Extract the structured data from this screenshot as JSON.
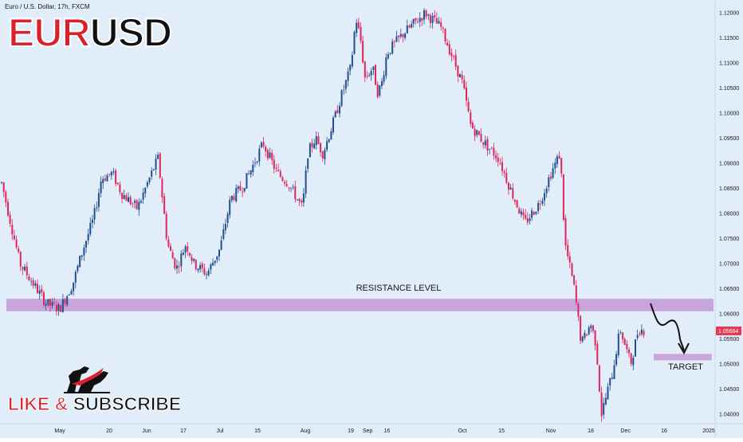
{
  "header": {
    "source_line": "Euro / U.S. Dollar, 17h, FXCM",
    "symbol_part_a": "EUR",
    "symbol_part_b": "USD"
  },
  "promo": {
    "like_part_a": "LIKE & ",
    "like_part_b": "SUBSCRIBE",
    "logo_icon": "bull-bear-icon"
  },
  "annotations": {
    "resistance_label": "RESISTANCE LEVEL",
    "target_label": "TARGET",
    "projection_icon": "down-arrow-path-icon"
  },
  "colors": {
    "background": "#e1edf9",
    "up_candle": "#1f4f8f",
    "down_candle": "#e0245e",
    "zone_fill": "#c8a6dd",
    "price_badge": "#e53950"
  },
  "chart_data": {
    "type": "candlestick",
    "title": "EURUSD",
    "subtitle": "Euro / U.S. Dollar, 17h, FXCM",
    "ylim": [
      1.0375,
      1.1215
    ],
    "y_ticks": [
      "1.12000",
      "1.11500",
      "1.11000",
      "1.10500",
      "1.10000",
      "1.09500",
      "1.09000",
      "1.08500",
      "1.08000",
      "1.07500",
      "1.07000",
      "1.06500",
      "1.06000",
      "1.05500",
      "1.05000",
      "1.04500",
      "1.04000"
    ],
    "x_ticks": [
      "May",
      "20",
      "Jun",
      "17",
      "Jul",
      "15",
      "Aug",
      "19",
      "Sep",
      "16",
      "Oct",
      "15",
      "Nov",
      "18",
      "Dec",
      "16",
      "2025"
    ],
    "last_price": "1.05664",
    "grid": false,
    "price_path": [
      {
        "date": "Apr 22",
        "price": 1.0875
      },
      {
        "date": "Apr 25",
        "price": 1.07
      },
      {
        "date": "Apr 29",
        "price": 1.062
      },
      {
        "date": "May 1",
        "price": 1.061
      },
      {
        "date": "May 6",
        "price": 1.066
      },
      {
        "date": "May 10",
        "price": 1.073
      },
      {
        "date": "May 14",
        "price": 1.079
      },
      {
        "date": "May 17",
        "price": 1.087
      },
      {
        "date": "May 21",
        "price": 1.088
      },
      {
        "date": "May 24",
        "price": 1.084
      },
      {
        "date": "May 29",
        "price": 1.081
      },
      {
        "date": "Jun 4",
        "price": 1.089
      },
      {
        "date": "Jun 6",
        "price": 1.091
      },
      {
        "date": "Jun 10",
        "price": 1.074
      },
      {
        "date": "Jun 14",
        "price": 1.069
      },
      {
        "date": "Jun 18",
        "price": 1.074
      },
      {
        "date": "Jun 21",
        "price": 1.07
      },
      {
        "date": "Jun 26",
        "price": 1.068
      },
      {
        "date": "Jul 1",
        "price": 1.073
      },
      {
        "date": "Jul 5",
        "price": 1.083
      },
      {
        "date": "Jul 9",
        "price": 1.085
      },
      {
        "date": "Jul 12",
        "price": 1.088
      },
      {
        "date": "Jul 17",
        "price": 1.094
      },
      {
        "date": "Jul 22",
        "price": 1.088
      },
      {
        "date": "Jul 26",
        "price": 1.086
      },
      {
        "date": "Jul 31",
        "price": 1.081
      },
      {
        "date": "Aug 2",
        "price": 1.092
      },
      {
        "date": "Aug 5",
        "price": 1.095
      },
      {
        "date": "Aug 8",
        "price": 1.092
      },
      {
        "date": "Aug 12",
        "price": 1.098
      },
      {
        "date": "Aug 15",
        "price": 1.103
      },
      {
        "date": "Aug 19",
        "price": 1.109
      },
      {
        "date": "Aug 23",
        "price": 1.119
      },
      {
        "date": "Aug 27",
        "price": 1.114
      },
      {
        "date": "Aug 30",
        "price": 1.107
      },
      {
        "date": "Sep 5",
        "price": 1.109
      },
      {
        "date": "Sep 9",
        "price": 1.104
      },
      {
        "date": "Sep 12",
        "price": 1.106
      },
      {
        "date": "Sep 16",
        "price": 1.112
      },
      {
        "date": "Sep 20",
        "price": 1.116
      },
      {
        "date": "Sep 24",
        "price": 1.12
      },
      {
        "date": "Sep 27",
        "price": 1.117
      },
      {
        "date": "Oct 1",
        "price": 1.106
      },
      {
        "date": "Oct 4",
        "price": 1.0975
      },
      {
        "date": "Oct 9",
        "price": 1.094
      },
      {
        "date": "Oct 14",
        "price": 1.091
      },
      {
        "date": "Oct 18",
        "price": 1.085
      },
      {
        "date": "Oct 23",
        "price": 1.078
      },
      {
        "date": "Oct 28",
        "price": 1.082
      },
      {
        "date": "Nov 1",
        "price": 1.088
      },
      {
        "date": "Nov 5",
        "price": 1.092
      },
      {
        "date": "Nov 7",
        "price": 1.074
      },
      {
        "date": "Nov 11",
        "price": 1.065
      },
      {
        "date": "Nov 14",
        "price": 1.054
      },
      {
        "date": "Nov 18",
        "price": 1.058
      },
      {
        "date": "Nov 20",
        "price": 1.054
      },
      {
        "date": "Nov 22",
        "price": 1.04
      },
      {
        "date": "Nov 26",
        "price": 1.048
      },
      {
        "date": "Nov 29",
        "price": 1.057
      },
      {
        "date": "Dec 3",
        "price": 1.05
      },
      {
        "date": "Dec 6",
        "price": 1.057
      },
      {
        "date": "Dec 9",
        "price": 1.0566
      }
    ],
    "zones": [
      {
        "name": "RESISTANCE LEVEL",
        "from_date": "Apr 22",
        "to_date": "2025",
        "low": 1.0605,
        "high": 1.063
      },
      {
        "name": "TARGET",
        "from_date": "Dec 16",
        "to_date": "Dec 28",
        "low": 1.051,
        "high": 1.052
      }
    ]
  }
}
